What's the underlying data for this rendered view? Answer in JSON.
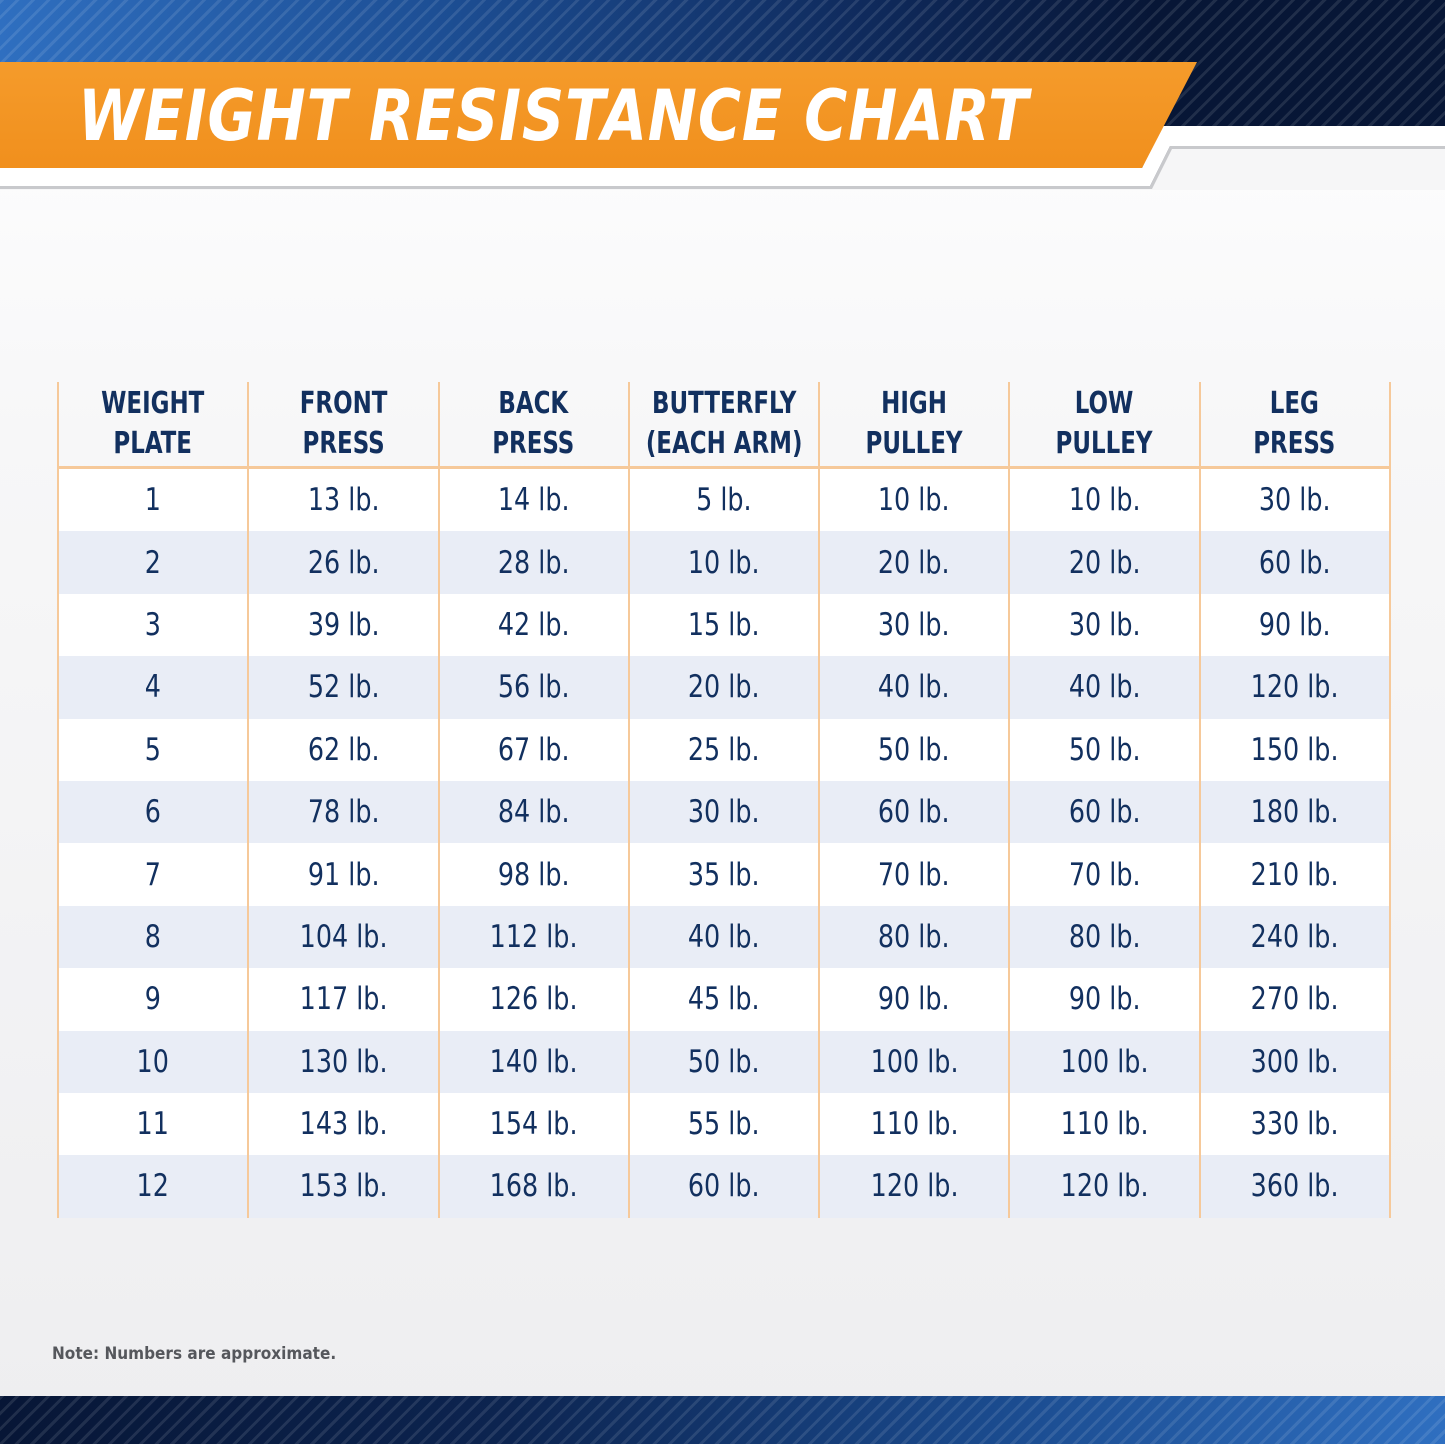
{
  "title": "WEIGHT RESISTANCE CHART",
  "table": {
    "headers": [
      "WEIGHT\nPLATE",
      "FRONT\nPRESS",
      "BACK\nPRESS",
      "BUTTERFLY\n(EACH ARM)",
      "HIGH\nPULLEY",
      "LOW\nPULLEY",
      "LEG\nPRESS"
    ],
    "rows": [
      [
        "1",
        "13 lb.",
        "14 lb.",
        "5 lb.",
        "10 lb.",
        "10 lb.",
        "30 lb."
      ],
      [
        "2",
        "26 lb.",
        "28 lb.",
        "10 lb.",
        "20 lb.",
        "20 lb.",
        "60 lb."
      ],
      [
        "3",
        "39 lb.",
        "42 lb.",
        "15 lb.",
        "30 lb.",
        "30 lb.",
        "90 lb."
      ],
      [
        "4",
        "52 lb.",
        "56 lb.",
        "20 lb.",
        "40 lb.",
        "40 lb.",
        "120 lb."
      ],
      [
        "5",
        "62 lb.",
        "67 lb.",
        "25 lb.",
        "50 lb.",
        "50 lb.",
        "150 lb."
      ],
      [
        "6",
        "78 lb.",
        "84 lb.",
        "30 lb.",
        "60 lb.",
        "60 lb.",
        "180 lb."
      ],
      [
        "7",
        "91 lb.",
        "98 lb.",
        "35 lb.",
        "70 lb.",
        "70 lb.",
        "210 lb."
      ],
      [
        "8",
        "104 lb.",
        "112 lb.",
        "40 lb.",
        "80 lb.",
        "80 lb.",
        "240 lb."
      ],
      [
        "9",
        "117 lb.",
        "126 lb.",
        "45 lb.",
        "90 lb.",
        "90 lb.",
        "270 lb."
      ],
      [
        "10",
        "130 lb.",
        "140 lb.",
        "50 lb.",
        "100 lb.",
        "100 lb.",
        "300 lb."
      ],
      [
        "11",
        "143 lb.",
        "154 lb.",
        "55 lb.",
        "110 lb.",
        "110 lb.",
        "330 lb."
      ],
      [
        "12",
        "153 lb.",
        "168 lb.",
        "60 lb.",
        "120 lb.",
        "120 lb.",
        "360 lb."
      ]
    ]
  },
  "note": "Note: Numbers are approximate.",
  "colors": {
    "accent": "#f08d1a",
    "navy": "#12305f",
    "grid_line": "#f6c99a",
    "row_stripe": "#e9edf6"
  }
}
